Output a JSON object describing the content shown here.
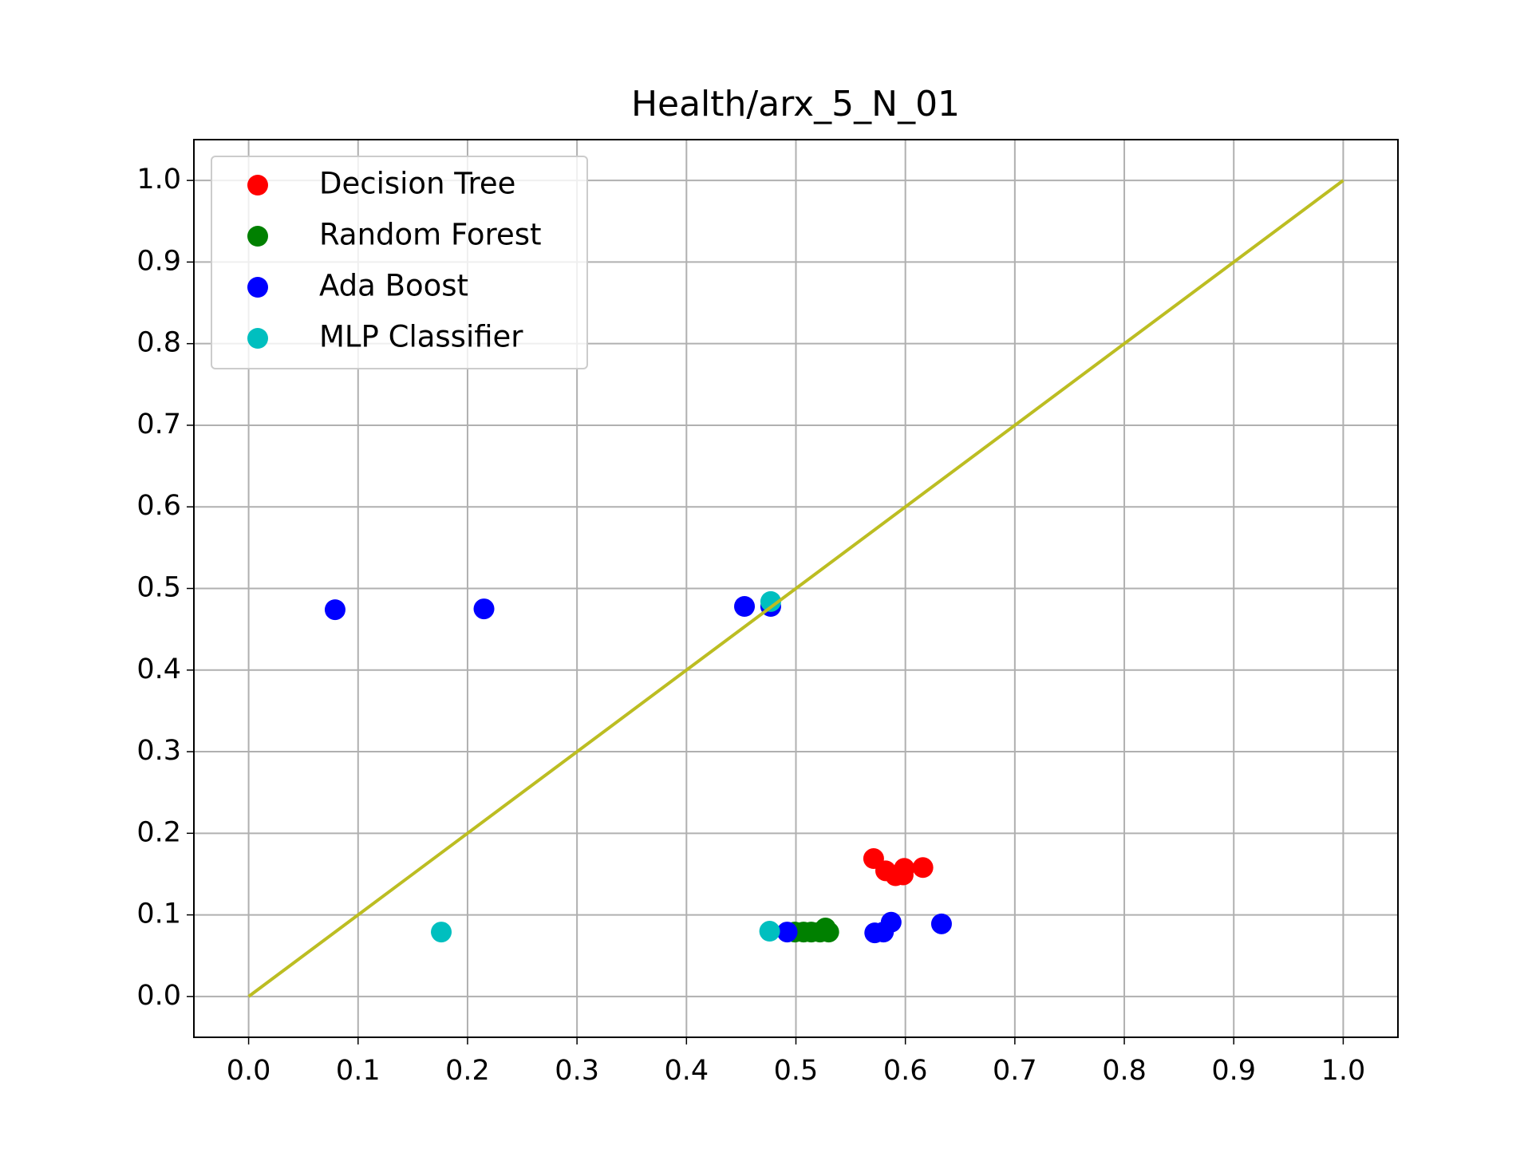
{
  "chart_data": {
    "type": "scatter",
    "title": "Health/arx_5_N_01",
    "xlim": [
      -0.05,
      1.05
    ],
    "ylim": [
      -0.05,
      1.05
    ],
    "xticks": [
      {
        "value": 0,
        "label": "0.0"
      },
      0.1,
      0.2,
      0.3,
      0.4,
      0.5,
      0.6,
      0.7,
      0.8,
      0.9,
      {
        "value": 1,
        "label": "1.0"
      }
    ],
    "yticks": [
      {
        "value": 0,
        "label": "0.0"
      },
      0.1,
      0.2,
      0.3,
      0.4,
      0.5,
      0.6,
      0.7,
      0.8,
      0.9,
      {
        "value": 1,
        "label": "1.0"
      }
    ],
    "grid": true,
    "legend": "upper left",
    "series": [
      {
        "name": "Decision Tree",
        "color": "#ff0000",
        "x": [
          0.571,
          0.582,
          0.591,
          0.598,
          0.599,
          0.616
        ],
        "values": [
          0.169,
          0.154,
          0.148,
          0.149,
          0.157,
          0.158
        ]
      },
      {
        "name": "Random Forest",
        "color": "#008000",
        "x": [
          0.499,
          0.507,
          0.514,
          0.522,
          0.527,
          0.53
        ],
        "values": [
          0.079,
          0.079,
          0.079,
          0.079,
          0.084,
          0.079
        ]
      },
      {
        "name": "Ada Boost",
        "color": "#0000ff",
        "x": [
          0.079,
          0.215,
          0.453,
          0.477,
          0.492,
          0.572,
          0.58,
          0.587,
          0.633
        ],
        "values": [
          0.474,
          0.475,
          0.478,
          0.478,
          0.079,
          0.078,
          0.079,
          0.091,
          0.089
        ]
      },
      {
        "name": "MLP Classifier",
        "color": "#00bfbf",
        "x": [
          0.176,
          0.477,
          0.476
        ],
        "values": [
          0.079,
          0.484,
          0.08
        ]
      }
    ],
    "line": {
      "color": "#bcbd22",
      "x": [
        0,
        1
      ],
      "values": [
        0,
        1
      ]
    }
  }
}
